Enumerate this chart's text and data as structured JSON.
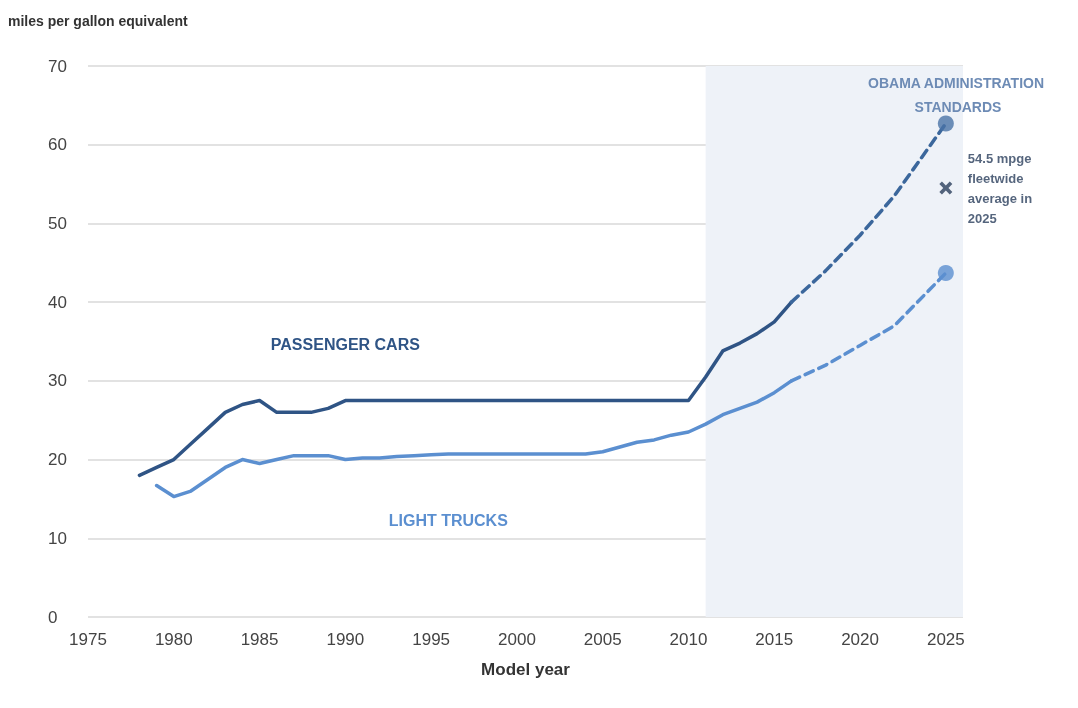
{
  "chart_data": {
    "type": "line",
    "xlabel": "Model year",
    "ylabel": "miles per gallon equivalent",
    "xlim": [
      1975,
      2026
    ],
    "xticks": [
      1975,
      1980,
      1985,
      1990,
      1995,
      2000,
      2005,
      2010,
      2015,
      2020,
      2025
    ],
    "ylim": [
      0,
      70
    ],
    "yticks": [
      0,
      10,
      20,
      30,
      40,
      50,
      60,
      70
    ],
    "grid": "y",
    "legend": false,
    "bands": [
      {
        "axis": "x",
        "from": 2011,
        "to": 2026,
        "label": "OBAMA ADMINISTRATION STANDARDS",
        "color": "#eef2f8"
      }
    ],
    "annotations": [
      {
        "text": "54.5 mpge fleetwide average in 2025",
        "x": 2025,
        "y": 54.5
      }
    ],
    "series": [
      {
        "name": "PASSENGER CARS",
        "color": "#2f5485",
        "line_style": "solid",
        "marker": "none",
        "x": [
          1978,
          1979,
          1980,
          1981,
          1982,
          1983,
          1984,
          1985,
          1986,
          1987,
          1988,
          1989,
          1990,
          1995,
          2000,
          2005,
          2010,
          2011,
          2012,
          2013,
          2014,
          2015,
          2016
        ],
        "values": [
          18,
          19,
          20,
          22,
          24,
          26,
          27,
          27.5,
          26,
          26,
          26,
          26.5,
          27.5,
          27.5,
          27.5,
          27.5,
          27.5,
          30.5,
          33.8,
          34.8,
          36,
          37.5,
          40
        ]
      },
      {
        "color": "#3b679c",
        "line_style": "dashed",
        "marker": "none",
        "x": [
          2016,
          2018,
          2020,
          2022,
          2025
        ],
        "values": [
          40,
          44,
          48.5,
          53.5,
          62.7
        ]
      },
      {
        "name": "LIGHT TRUCKS",
        "color": "#5b8fd0",
        "line_style": "solid",
        "marker": "none",
        "x": [
          1979,
          1980,
          1981,
          1982,
          1983,
          1984,
          1985,
          1986,
          1987,
          1988,
          1989,
          1990,
          1991,
          1992,
          1993,
          1994,
          1995,
          1996,
          2000,
          2004,
          2005,
          2006,
          2007,
          2008,
          2009,
          2010,
          2011,
          2012,
          2013,
          2014,
          2015,
          2016
        ],
        "values": [
          16.7,
          15.3,
          16,
          17.5,
          19,
          20,
          19.5,
          20,
          20.5,
          20.5,
          20.5,
          20,
          20.2,
          20.2,
          20.4,
          20.5,
          20.6,
          20.7,
          20.7,
          20.7,
          21,
          21.6,
          22.2,
          22.5,
          23.1,
          23.5,
          24.5,
          25.7,
          26.5,
          27.3,
          28.5,
          30
        ]
      },
      {
        "color": "#5b8fd0",
        "line_style": "dashed",
        "marker": "none",
        "x": [
          2016,
          2018,
          2020,
          2022,
          2025
        ],
        "values": [
          30,
          32,
          34.5,
          37,
          43.7
        ]
      },
      {
        "type": "scatter",
        "color": "#4a73a6",
        "marker": "circle",
        "x": [
          2025
        ],
        "values": [
          62.7
        ]
      },
      {
        "type": "scatter",
        "color": "#5b8fd0",
        "marker": "circle",
        "x": [
          2025
        ],
        "values": [
          43.7
        ]
      },
      {
        "type": "scatter",
        "color": "#2a3f5c",
        "marker": "cross",
        "x": [
          2025
        ],
        "values": [
          54.5
        ]
      }
    ]
  }
}
